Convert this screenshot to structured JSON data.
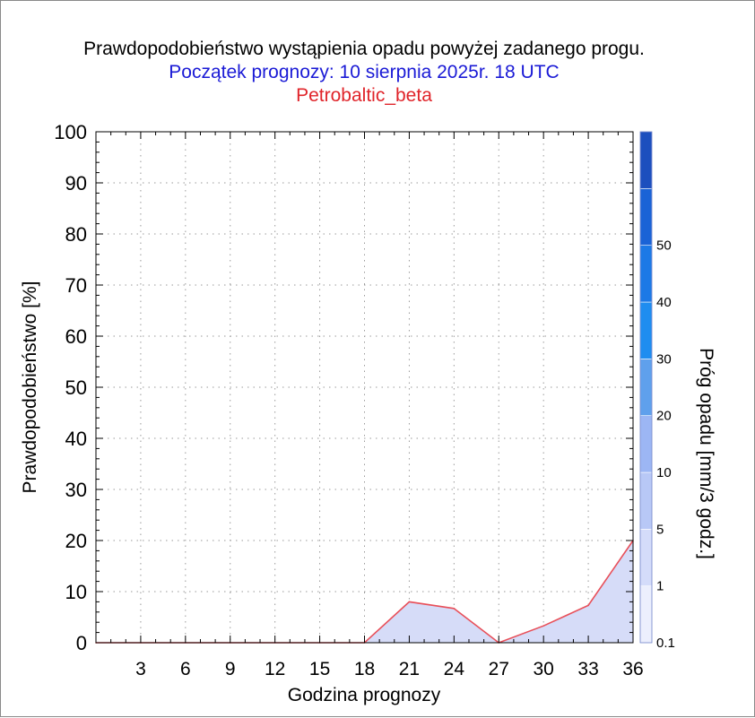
{
  "header": {
    "title": "Prawdopodobieństwo wystąpienia opadu powyżej zadanego progu.",
    "subtitle": "Początek prognozy: 10 sierpnia 2025r. 18 UTC",
    "model": "Petrobaltic_beta"
  },
  "colors": {
    "title": "#000000",
    "subtitle": "#1a1ad6",
    "model": "#e0242a",
    "series_line": "#e8505a",
    "series_fill": "#d6dcf8",
    "grid": "#9a9a9a"
  },
  "chart_data": {
    "type": "area",
    "xlabel": "Godzina prognozy",
    "ylabel": "Prawdopodobieństwo [%]",
    "xlim": [
      0,
      36
    ],
    "ylim": [
      0,
      100
    ],
    "x_ticks": [
      3,
      6,
      9,
      12,
      15,
      18,
      21,
      24,
      27,
      30,
      33,
      36
    ],
    "y_ticks": [
      0,
      10,
      20,
      30,
      40,
      50,
      60,
      70,
      80,
      90,
      100
    ],
    "grid": true,
    "x": [
      0,
      3,
      6,
      9,
      12,
      15,
      18,
      21,
      24,
      27,
      30,
      33,
      36
    ],
    "series": [
      {
        "threshold": "0.1",
        "values": [
          0,
          0,
          0,
          0,
          0,
          0,
          0,
          8,
          6.7,
          0,
          3.3,
          7.3,
          20
        ]
      }
    ],
    "colorbar": {
      "label": "Próg opadu [mm/3 godz.]",
      "ticks": [
        "0.1",
        "1",
        "5",
        "10",
        "20",
        "30",
        "40",
        "50"
      ],
      "colors": [
        "#eceffd",
        "#d4dcfa",
        "#b8c8f6",
        "#9cb6f4",
        "#5fa0ec",
        "#1f8df0",
        "#1c79e6",
        "#1a63d6",
        "#1c4fbe"
      ]
    }
  }
}
